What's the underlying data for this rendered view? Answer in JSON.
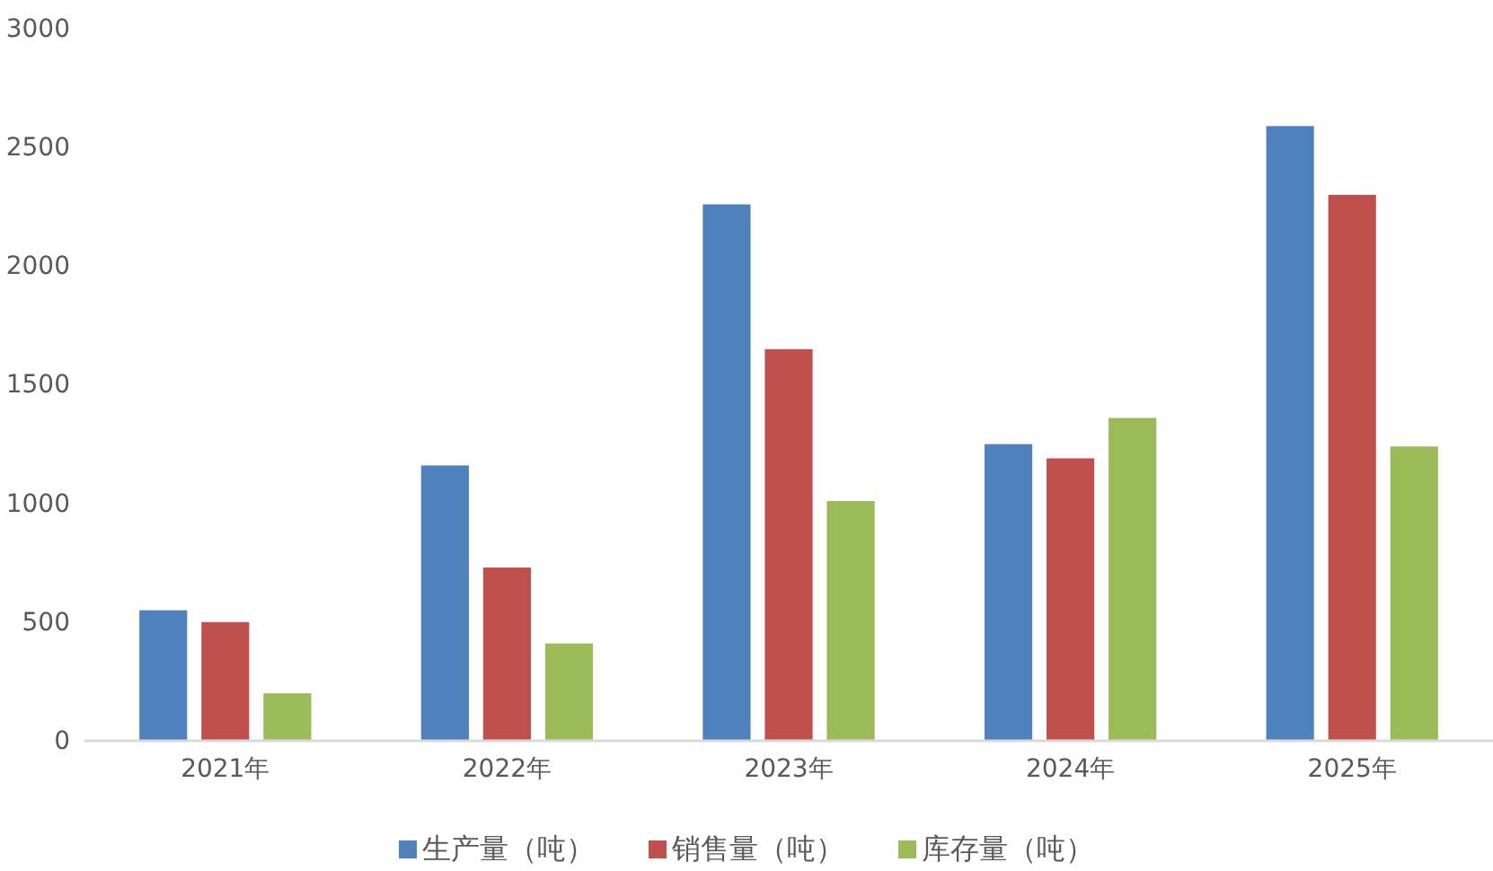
{
  "chart_data": {
    "type": "bar",
    "categories": [
      "2021年",
      "2022年",
      "2023年",
      "2024年",
      "2025年"
    ],
    "series": [
      {
        "name": "生产量（吨）",
        "color": "#4f81bd",
        "values": [
          550,
          1160,
          2260,
          1250,
          2590
        ]
      },
      {
        "name": "销售量（吨）",
        "color": "#c0504d",
        "values": [
          500,
          730,
          1650,
          1190,
          2300
        ]
      },
      {
        "name": "库存量（吨）",
        "color": "#9bbb59",
        "values": [
          200,
          410,
          1010,
          1360,
          1240
        ]
      }
    ],
    "ylim": [
      0,
      3000
    ],
    "yticks": [
      0,
      500,
      1000,
      1500,
      2000,
      2500,
      3000
    ],
    "legend": "bottom"
  }
}
